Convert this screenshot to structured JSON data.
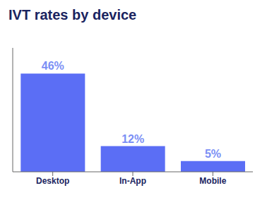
{
  "chart_data": {
    "type": "bar",
    "title": "IVT rates by device",
    "categories": [
      "Desktop",
      "In-App",
      "Mobile"
    ],
    "values": [
      46,
      12,
      5
    ],
    "value_labels": [
      "46%",
      "12%",
      "5%"
    ],
    "data_labels": true,
    "color": "#5b6ef5",
    "ylim": [
      0,
      58
    ],
    "grid": false,
    "tick_labels": "x"
  }
}
